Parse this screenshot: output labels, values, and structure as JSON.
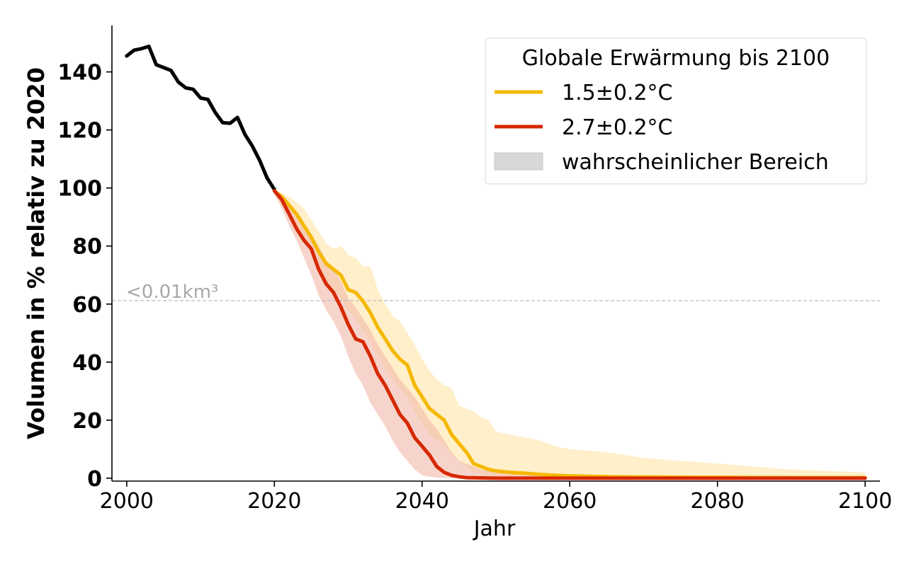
{
  "chart_data": {
    "type": "line",
    "xlabel": "Jahr",
    "ylabel": "Volumen in % relativ zu 2020",
    "xlim": [
      1998,
      2102
    ],
    "ylim": [
      -1,
      156
    ],
    "xticks": [
      2000,
      2020,
      2040,
      2060,
      2080,
      2100
    ],
    "yticks": [
      0,
      20,
      40,
      60,
      80,
      100,
      120,
      140
    ],
    "grid": false,
    "legend": {
      "title": "Globale Erwärmung bis 2100",
      "placement": "top-right",
      "entries": [
        {
          "label": "1.5±0.2°C",
          "color": "#f5b800",
          "kind": "line"
        },
        {
          "label": "2.7±0.2°C",
          "color": "#d62800",
          "kind": "line"
        },
        {
          "label": "wahrscheinlicher Bereich",
          "color": "#d8d8d8",
          "kind": "patch"
        }
      ]
    },
    "reference_line": {
      "y": 61.2,
      "label": "<0.01km³",
      "color": "#bbbbbb"
    },
    "historical": {
      "color": "#000000",
      "x": [
        2000,
        2001,
        2002,
        2003,
        2004,
        2005,
        2006,
        2007,
        2008,
        2009,
        2010,
        2011,
        2012,
        2013,
        2014,
        2015,
        2016,
        2017,
        2018,
        2019,
        2020
      ],
      "y": [
        145.5,
        147.5,
        148,
        148.8,
        142.5,
        141.5,
        140.5,
        136.5,
        134.5,
        134,
        131,
        130.5,
        126,
        122.5,
        122.3,
        124.3,
        118.5,
        114.5,
        109.5,
        103.5,
        99.5
      ]
    },
    "series": [
      {
        "name": "1.5±0.2°C",
        "color": "#f5b800",
        "band_color": "#ffeab8",
        "x": [
          2020,
          2021,
          2022,
          2023,
          2024,
          2025,
          2026,
          2027,
          2028,
          2029,
          2030,
          2031,
          2032,
          2033,
          2034,
          2035,
          2036,
          2037,
          2038,
          2039,
          2040,
          2041,
          2042,
          2043,
          2044,
          2045,
          2046,
          2047,
          2048,
          2049,
          2050,
          2052,
          2054,
          2056,
          2058,
          2060,
          2065,
          2070,
          2080,
          2090,
          2100
        ],
        "y": [
          99,
          97,
          94,
          91,
          87,
          83,
          78,
          74,
          72,
          70,
          65,
          64,
          61,
          57,
          52,
          48,
          44,
          41,
          39,
          32,
          28,
          24,
          22,
          20,
          15,
          12,
          9,
          5,
          4,
          3,
          2.5,
          2,
          1.7,
          1.3,
          1,
          0.8,
          0.5,
          0.4,
          0.3,
          0.2,
          0.2
        ],
        "lower": [
          98,
          94,
          90,
          86,
          82,
          78,
          73,
          68,
          65,
          62,
          58,
          55,
          51,
          47,
          42,
          38,
          34,
          31,
          28,
          23,
          19,
          15,
          13,
          11,
          8,
          6,
          4,
          2,
          1.5,
          1,
          0.6,
          0.4,
          0.3,
          0.2,
          0.1,
          0.1,
          0,
          0,
          0,
          0,
          0
        ],
        "upper": [
          99.5,
          98,
          97,
          95,
          93,
          89,
          85,
          81,
          79,
          80,
          77,
          76,
          73,
          73,
          65,
          60,
          56,
          54,
          50,
          46,
          41,
          37,
          34,
          32,
          31,
          25,
          24,
          23,
          21,
          20,
          16,
          15,
          14,
          13,
          11,
          10,
          9,
          7,
          5,
          3,
          2
        ]
      },
      {
        "name": "2.7±0.2°C",
        "color": "#d62800",
        "band_color": "#f2b8a8",
        "x": [
          2020,
          2021,
          2022,
          2023,
          2024,
          2025,
          2026,
          2027,
          2028,
          2029,
          2030,
          2031,
          2032,
          2033,
          2034,
          2035,
          2036,
          2037,
          2038,
          2039,
          2040,
          2041,
          2042,
          2043,
          2044,
          2045,
          2046,
          2048,
          2050,
          2055,
          2060,
          2070,
          2080,
          2090,
          2100
        ],
        "y": [
          99,
          96,
          91,
          86,
          82,
          79,
          72,
          67,
          64,
          59,
          53,
          48,
          47,
          42,
          36,
          32,
          27,
          22,
          19,
          14,
          11,
          8,
          4,
          2,
          1,
          0.5,
          0.2,
          0.1,
          0,
          0,
          0,
          0,
          0,
          0,
          0
        ],
        "lower": [
          98,
          93,
          87,
          82,
          76,
          70,
          63,
          58,
          54,
          49,
          42,
          36,
          32,
          26,
          22,
          18,
          13,
          9,
          6,
          3,
          1,
          0.5,
          0.2,
          0.1,
          0,
          0,
          0,
          0,
          0,
          0,
          0,
          0,
          0,
          0,
          0
        ],
        "upper": [
          99.5,
          98,
          95,
          91,
          87,
          84,
          80,
          75,
          72,
          68,
          62,
          59,
          55,
          51,
          46,
          42,
          38,
          34,
          31,
          28,
          24,
          20,
          17,
          13,
          9,
          6,
          5,
          3,
          2,
          1,
          0.5,
          0.2,
          0,
          0,
          0
        ]
      }
    ]
  }
}
